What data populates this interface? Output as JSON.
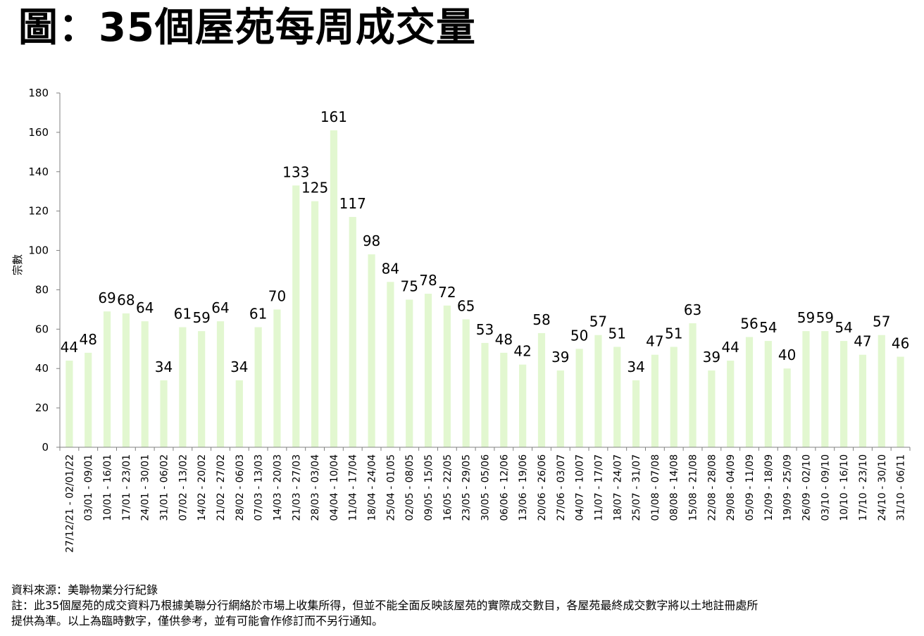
{
  "title": "圖：35個屋苑每周成交量",
  "chart_data": {
    "type": "bar",
    "title": "圖：35個屋苑每周成交量",
    "ylabel": "宗數",
    "xlabel": "",
    "ylim": [
      0,
      180
    ],
    "yticks": [
      0,
      20,
      40,
      60,
      80,
      100,
      120,
      140,
      160,
      180
    ],
    "grid": false,
    "legend": "none",
    "bar_color": "#e2f7d0",
    "categories": [
      "27/12/21 - 02/01/22",
      "03/01 - 09/01",
      "10/01 - 16/01",
      "17/01 - 23/01",
      "24/01 - 30/01",
      "31/01 - 06/02",
      "07/02 - 13/02",
      "14/02 - 20/02",
      "21/02 - 27/02",
      "28/02 - 06/03",
      "07/03 - 13/03",
      "14/03 - 20/03",
      "21/03 - 27/03",
      "28/03 - 03/04",
      "04/04 - 10/04",
      "11/04 - 17/04",
      "18/04 - 24/04",
      "25/04 - 01/05",
      "02/05 - 08/05",
      "09/05 - 15/05",
      "16/05 - 22/05",
      "23/05 - 29/05",
      "30/05 - 05/06",
      "06/06 - 12/06",
      "13/06 - 19/06",
      "20/06 - 26/06",
      "27/06 - 03/07",
      "04/07 - 10/07",
      "11/07 - 17/07",
      "18/07 - 24/07",
      "25/07 - 31/07",
      "01/08 - 07/08",
      "08/08 - 14/08",
      "15/08 - 21/08",
      "22/08 - 28/08",
      "29/08 - 04/09",
      "05/09 - 11/09",
      "12/09 - 18/09",
      "19/09 - 25/09",
      "26/09 - 02/10",
      "03/10 - 09/10",
      "10/10 - 16/10",
      "17/10 - 23/10",
      "24/10 - 30/10",
      "31/10 - 06/11"
    ],
    "values": [
      44,
      48,
      69,
      68,
      64,
      34,
      61,
      59,
      64,
      34,
      61,
      70,
      133,
      125,
      161,
      117,
      98,
      84,
      75,
      78,
      72,
      65,
      53,
      48,
      42,
      58,
      39,
      50,
      57,
      51,
      34,
      47,
      51,
      63,
      39,
      44,
      56,
      54,
      40,
      59,
      59,
      54,
      47,
      57,
      46
    ]
  },
  "footer": {
    "source": "資料來源：美聯物業分行紀錄",
    "note_line1": "註：此35個屋苑的成交資料乃根據美聯分行網絡於市場上收集所得，但並不能全面反映該屋苑的實際成交數目，各屋苑最終成交數字將以土地註冊處所",
    "note_line2": "提供為準。以上為臨時數字，僅供參考，並有可能會作修訂而不另行通知。"
  }
}
